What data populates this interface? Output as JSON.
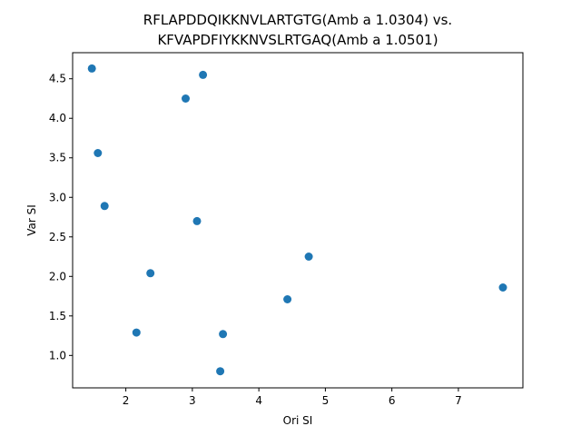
{
  "chart_data": {
    "type": "scatter",
    "title_lines": [
      "RFLAPDDQIKKNVLARTGTG(Amb a 1.0304) vs.",
      "KFVAPDFIYKKNVSLRTGAQ(Amb a 1.0501)"
    ],
    "xlabel": "Ori SI",
    "ylabel": "Var SI",
    "xlim": [
      1.2,
      7.97
    ],
    "ylim": [
      0.59,
      4.83
    ],
    "x_ticks": [
      2,
      3,
      4,
      5,
      6,
      7
    ],
    "y_ticks": [
      1.0,
      1.5,
      2.0,
      2.5,
      3.0,
      3.5,
      4.0,
      4.5
    ],
    "y_tick_labels": [
      "1.0",
      "1.5",
      "2.0",
      "2.5",
      "3.0",
      "3.5",
      "4.0",
      "4.5"
    ],
    "marker_color": "#1f77b4",
    "grid": false,
    "points": [
      {
        "x": 1.49,
        "y": 4.63
      },
      {
        "x": 3.16,
        "y": 4.55
      },
      {
        "x": 2.9,
        "y": 4.25
      },
      {
        "x": 1.58,
        "y": 3.56
      },
      {
        "x": 1.68,
        "y": 2.89
      },
      {
        "x": 3.07,
        "y": 2.7
      },
      {
        "x": 4.75,
        "y": 2.25
      },
      {
        "x": 2.37,
        "y": 2.04
      },
      {
        "x": 7.67,
        "y": 1.86
      },
      {
        "x": 4.43,
        "y": 1.71
      },
      {
        "x": 2.16,
        "y": 1.29
      },
      {
        "x": 3.46,
        "y": 1.27
      },
      {
        "x": 3.42,
        "y": 0.8
      }
    ]
  }
}
